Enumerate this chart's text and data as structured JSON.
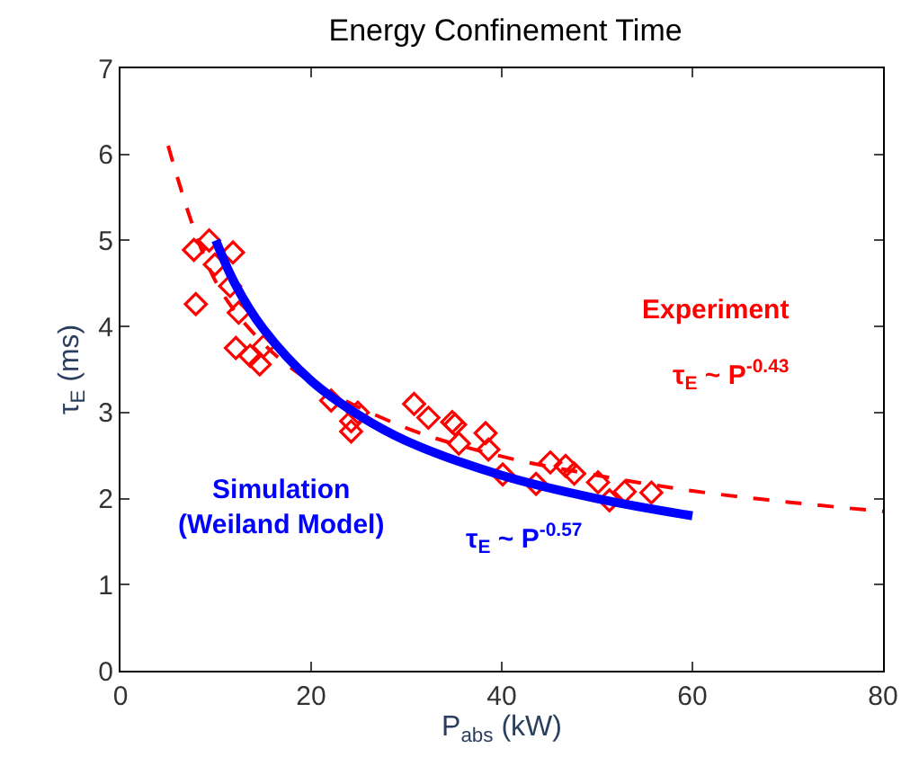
{
  "chart_data": {
    "type": "scatter",
    "title": "Energy Confinement Time",
    "xlabel": "P$_{abs}$ (kW)",
    "ylabel": "τ$_{E}$ (ms)",
    "xlim": [
      0,
      80
    ],
    "xticks": [
      0,
      20,
      40,
      60,
      80
    ],
    "ylim": [
      0,
      7
    ],
    "yticks": [
      0,
      1,
      2,
      3,
      4,
      5,
      6,
      7
    ],
    "legend": false,
    "series": [
      {
        "marker": "diamond",
        "color": "#ff0000",
        "x": [
          7.7,
          7.9,
          9.3,
          9.9,
          11.8,
          11.5,
          12.4,
          12.1,
          13.6,
          14.6,
          15.0,
          22.1,
          24.2,
          24.9,
          24.2,
          30.8,
          32.3,
          34.8,
          35.5,
          35.1,
          38.3,
          38.6,
          40.1,
          43.6,
          45.1,
          46.7,
          47.6,
          50.1,
          51.3,
          52.9,
          55.7
        ],
        "values": [
          4.89,
          4.26,
          5.0,
          4.72,
          4.86,
          4.47,
          4.16,
          3.75,
          3.66,
          3.56,
          3.77,
          3.14,
          2.78,
          3.0,
          2.9,
          3.1,
          2.94,
          2.89,
          2.64,
          2.86,
          2.76,
          2.57,
          2.28,
          2.17,
          2.42,
          2.38,
          2.29,
          2.19,
          1.98,
          2.08,
          2.07
        ]
      },
      {
        "type": "line",
        "marker": "none",
        "line_style": "dashed",
        "color": "#ff0000",
        "x": [
          5,
          10,
          15,
          20,
          30,
          40,
          50,
          60,
          70,
          80
        ],
        "values": [
          6.1,
          4.52,
          3.8,
          3.36,
          2.82,
          2.49,
          2.27,
          2.09,
          1.96,
          1.85
        ]
      },
      {
        "type": "line",
        "marker": "none",
        "line_style": "solid",
        "color": "#0000ff",
        "x": [
          10,
          12,
          15,
          20,
          25,
          30,
          40,
          50,
          60
        ],
        "values": [
          5.0,
          4.5,
          3.97,
          3.37,
          2.97,
          2.67,
          2.27,
          2.0,
          1.8
        ]
      }
    ],
    "annotations": [
      "Experiment",
      "τ$_{E}$ ~ P$^{-0.43}$",
      "Simulation\n(Weiland Model)",
      "τ$_{E}$ ~ P$^{-0.57}$"
    ]
  }
}
